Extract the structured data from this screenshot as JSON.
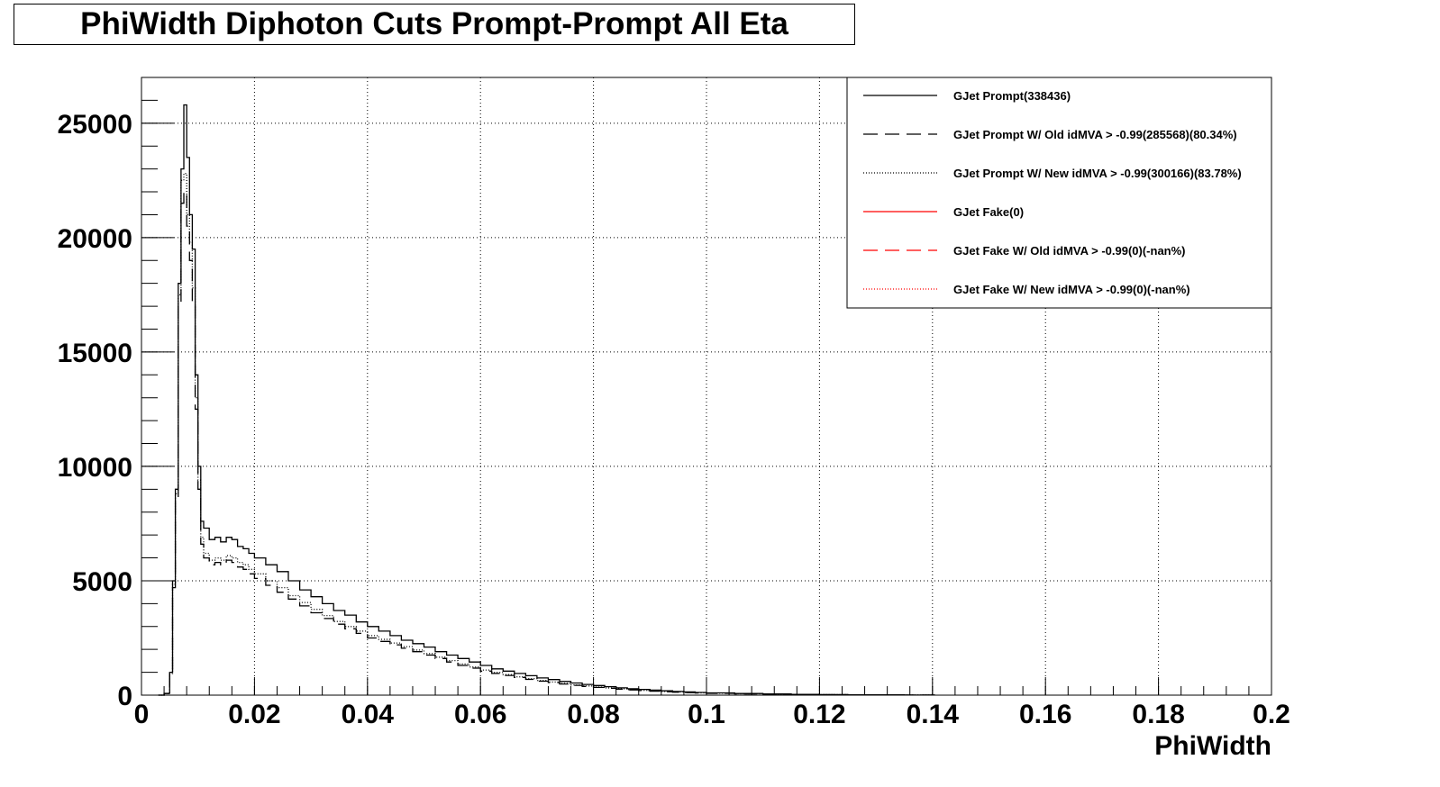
{
  "chart_data": {
    "type": "line",
    "title": "PhiWidth Diphoton Cuts Prompt-Prompt All Eta",
    "xlabel": "PhiWidth",
    "ylabel": "",
    "xlim": [
      0,
      0.2
    ],
    "ylim": [
      0,
      27000
    ],
    "grid": true,
    "legend_position": "top-right",
    "x_ticks": [
      "0",
      "0.02",
      "0.04",
      "0.06",
      "0.08",
      "0.1",
      "0.12",
      "0.14",
      "0.16",
      "0.18",
      "0.2"
    ],
    "y_ticks": [
      "0",
      "5000",
      "10000",
      "15000",
      "20000",
      "25000"
    ],
    "series": [
      {
        "name": "GJet Prompt(338436)",
        "color": "#000000",
        "dash": "solid",
        "x": [
          0.003,
          0.004,
          0.005,
          0.0055,
          0.006,
          0.0065,
          0.007,
          0.0075,
          0.008,
          0.0085,
          0.009,
          0.0095,
          0.01,
          0.0105,
          0.011,
          0.012,
          0.013,
          0.014,
          0.015,
          0.016,
          0.017,
          0.018,
          0.019,
          0.02,
          0.022,
          0.024,
          0.026,
          0.028,
          0.03,
          0.032,
          0.034,
          0.036,
          0.038,
          0.04,
          0.042,
          0.044,
          0.046,
          0.048,
          0.05,
          0.052,
          0.054,
          0.056,
          0.058,
          0.06,
          0.062,
          0.064,
          0.066,
          0.068,
          0.07,
          0.072,
          0.074,
          0.076,
          0.078,
          0.08,
          0.082,
          0.084,
          0.086,
          0.088,
          0.09,
          0.092,
          0.094,
          0.096,
          0.098,
          0.1,
          0.105,
          0.11,
          0.115,
          0.12,
          0.125,
          0.13,
          0.135,
          0.14
        ],
        "values": [
          0,
          80,
          1000,
          5000,
          9000,
          18000,
          23000,
          25800,
          23500,
          21000,
          19500,
          14000,
          10000,
          7600,
          7300,
          6800,
          6900,
          6700,
          6900,
          6800,
          6500,
          6400,
          6200,
          6000,
          5700,
          5400,
          5000,
          4600,
          4300,
          4000,
          3700,
          3500,
          3200,
          3000,
          2800,
          2600,
          2400,
          2250,
          2100,
          1900,
          1750,
          1600,
          1450,
          1300,
          1150,
          1050,
          950,
          850,
          750,
          680,
          600,
          530,
          470,
          420,
          370,
          320,
          280,
          250,
          220,
          190,
          160,
          140,
          120,
          100,
          70,
          50,
          35,
          25,
          15,
          10,
          5,
          3
        ]
      },
      {
        "name": "GJet Prompt W/ Old idMVA > -0.99(285568)(80.34%)",
        "color": "#000000",
        "dash": "dashed",
        "x": [
          0.003,
          0.004,
          0.005,
          0.0055,
          0.006,
          0.0065,
          0.007,
          0.0075,
          0.008,
          0.0085,
          0.009,
          0.0095,
          0.01,
          0.0105,
          0.011,
          0.012,
          0.013,
          0.014,
          0.015,
          0.016,
          0.017,
          0.018,
          0.019,
          0.02,
          0.022,
          0.024,
          0.026,
          0.028,
          0.03,
          0.032,
          0.034,
          0.036,
          0.038,
          0.04,
          0.042,
          0.044,
          0.046,
          0.048,
          0.05,
          0.052,
          0.054,
          0.056,
          0.058,
          0.06,
          0.062,
          0.064,
          0.066,
          0.068,
          0.07,
          0.072,
          0.074,
          0.076,
          0.078,
          0.08,
          0.082,
          0.084,
          0.086,
          0.088,
          0.09,
          0.092,
          0.094,
          0.096,
          0.098,
          0.1,
          0.105,
          0.11,
          0.115,
          0.12,
          0.125,
          0.13,
          0.135,
          0.14
        ],
        "values": [
          0,
          70,
          900,
          4700,
          8500,
          17000,
          21500,
          22000,
          20500,
          19000,
          17200,
          12500,
          9000,
          6600,
          6000,
          5700,
          5800,
          5700,
          5900,
          5800,
          5600,
          5500,
          5300,
          5100,
          4800,
          4500,
          4200,
          3900,
          3600,
          3350,
          3100,
          2900,
          2700,
          2500,
          2350,
          2200,
          2050,
          1900,
          1750,
          1600,
          1450,
          1300,
          1180,
          1050,
          950,
          860,
          770,
          690,
          610,
          550,
          490,
          430,
          380,
          340,
          300,
          260,
          230,
          200,
          175,
          150,
          130,
          110,
          95,
          80,
          55,
          40,
          28,
          20,
          12,
          8,
          4,
          2
        ]
      },
      {
        "name": "GJet Prompt W/ New idMVA > -0.99(300166)(83.78%)",
        "color": "#000000",
        "dash": "dotted",
        "x": [
          0.003,
          0.004,
          0.005,
          0.0055,
          0.006,
          0.0065,
          0.007,
          0.0075,
          0.008,
          0.0085,
          0.009,
          0.0095,
          0.01,
          0.0105,
          0.011,
          0.012,
          0.013,
          0.014,
          0.015,
          0.016,
          0.017,
          0.018,
          0.019,
          0.02,
          0.022,
          0.024,
          0.026,
          0.028,
          0.03,
          0.032,
          0.034,
          0.036,
          0.038,
          0.04,
          0.042,
          0.044,
          0.046,
          0.048,
          0.05,
          0.052,
          0.054,
          0.056,
          0.058,
          0.06,
          0.062,
          0.064,
          0.066,
          0.068,
          0.07,
          0.072,
          0.074,
          0.076,
          0.078,
          0.08,
          0.082,
          0.084,
          0.086,
          0.088,
          0.09,
          0.092,
          0.094,
          0.096,
          0.098,
          0.1,
          0.105,
          0.11,
          0.115,
          0.12,
          0.125,
          0.13,
          0.135,
          0.14
        ],
        "values": [
          0,
          75,
          950,
          4850,
          8800,
          17500,
          22500,
          22800,
          21000,
          19800,
          17800,
          13000,
          9400,
          6900,
          6200,
          5900,
          6000,
          5900,
          6100,
          6000,
          5800,
          5700,
          5500,
          5300,
          5000,
          4700,
          4350,
          4050,
          3750,
          3480,
          3220,
          3000,
          2800,
          2600,
          2440,
          2280,
          2120,
          1970,
          1820,
          1660,
          1510,
          1360,
          1230,
          1100,
          990,
          900,
          800,
          720,
          640,
          575,
          510,
          450,
          400,
          355,
          315,
          275,
          240,
          210,
          185,
          160,
          138,
          118,
          100,
          85,
          60,
          42,
          30,
          22,
          13,
          9,
          4,
          2
        ]
      },
      {
        "name": "GJet Fake(0)",
        "color": "#ff0000",
        "dash": "solid",
        "x": [],
        "values": []
      },
      {
        "name": "GJet Fake W/ Old idMVA > -0.99(0)(-nan%)",
        "color": "#ff0000",
        "dash": "dashed",
        "x": [],
        "values": []
      },
      {
        "name": "GJet Fake W/ New idMVA > -0.99(0)(-nan%)",
        "color": "#ff0000",
        "dash": "dotted",
        "x": [],
        "values": []
      }
    ]
  }
}
